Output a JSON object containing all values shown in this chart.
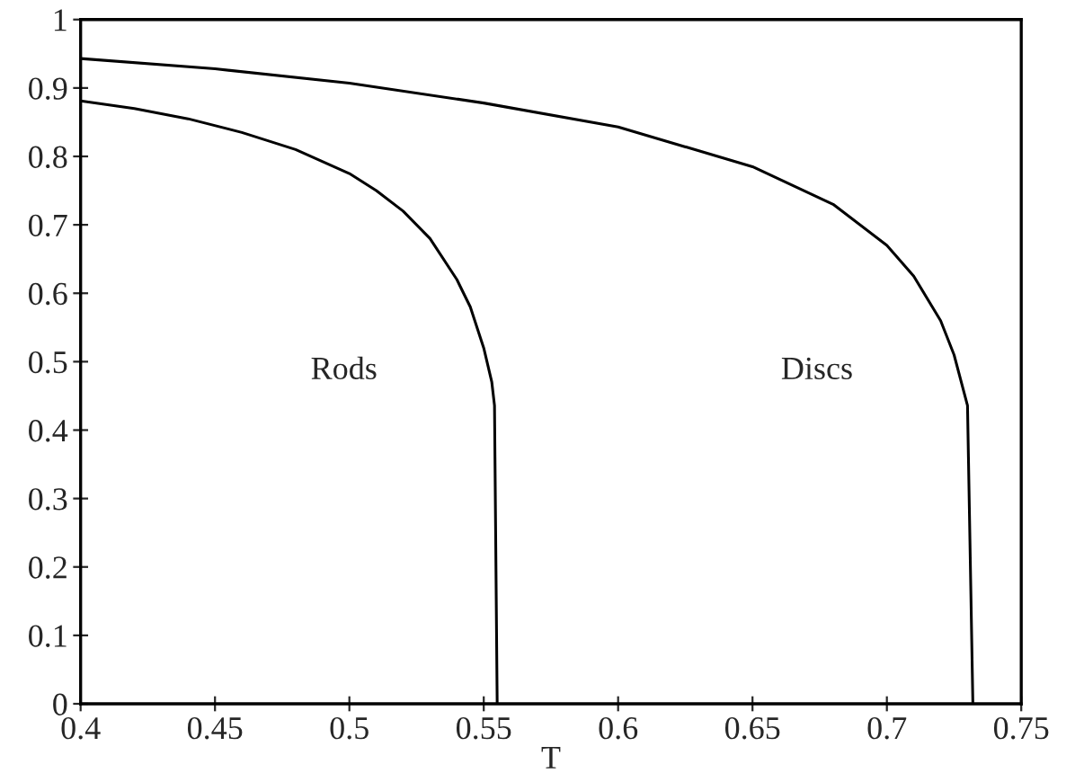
{
  "chart_data": {
    "type": "line",
    "xlabel": "T",
    "series": [
      {
        "color": "#000000",
        "x": [
          0.4,
          0.42,
          0.44,
          0.46,
          0.48,
          0.5,
          0.51,
          0.52,
          0.53,
          0.54,
          0.545,
          0.55,
          0.553,
          0.554,
          0.555
        ],
        "values": [
          0.881,
          0.87,
          0.855,
          0.835,
          0.81,
          0.775,
          0.75,
          0.72,
          0.68,
          0.62,
          0.58,
          0.52,
          0.47,
          0.436,
          0.0
        ]
      },
      {
        "color": "#000000",
        "x": [
          0.4,
          0.45,
          0.5,
          0.55,
          0.6,
          0.65,
          0.68,
          0.7,
          0.71,
          0.72,
          0.725,
          0.73,
          0.732
        ],
        "values": [
          0.943,
          0.928,
          0.907,
          0.878,
          0.843,
          0.785,
          0.73,
          0.67,
          0.625,
          0.56,
          0.51,
          0.436,
          0.0
        ]
      }
    ],
    "xlim": [
      0.4,
      0.75
    ],
    "ylim": [
      0,
      1
    ],
    "xticks": [
      0.4,
      0.45,
      0.5,
      0.55,
      0.6,
      0.65,
      0.7,
      0.75
    ],
    "yticks": [
      0,
      0.1,
      0.2,
      0.3,
      0.4,
      0.5,
      0.6,
      0.7,
      0.8,
      0.9,
      1
    ],
    "grid": false,
    "legend": false,
    "marker": "none",
    "line_style": "solid",
    "annotations": [
      "Rods",
      "Discs"
    ]
  }
}
